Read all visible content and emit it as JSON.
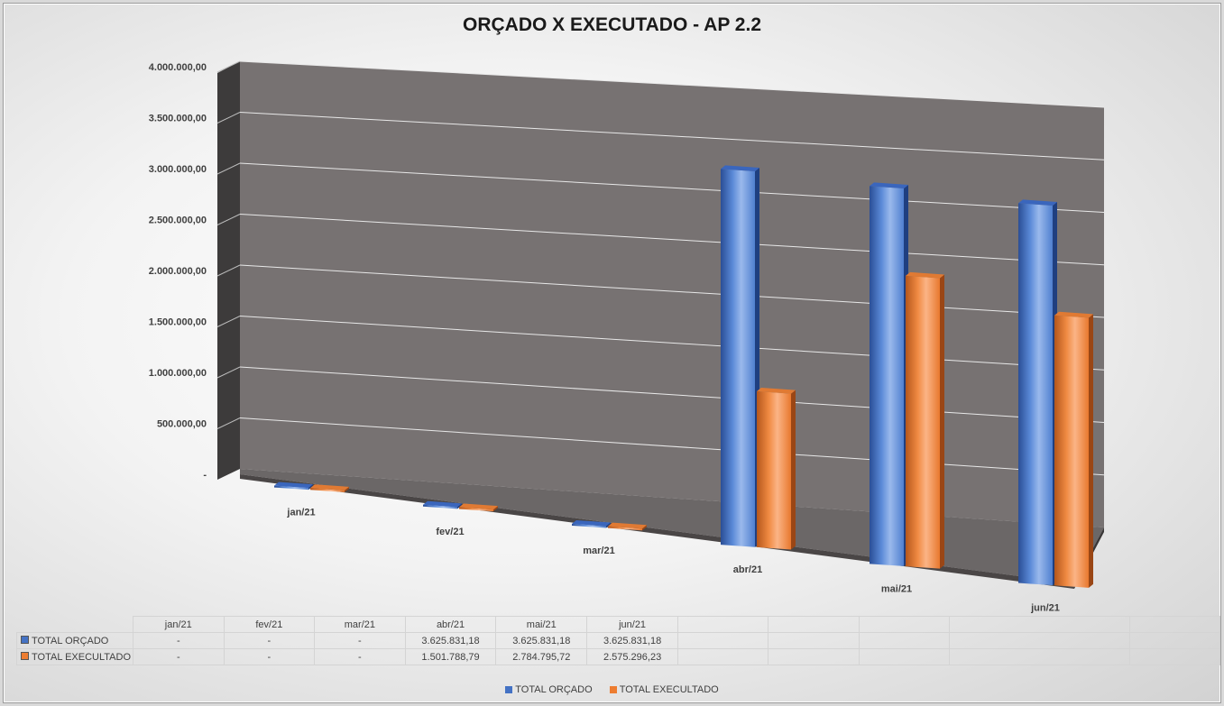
{
  "chart_data": {
    "type": "bar",
    "title": "ORÇADO X EXECUTADO - AP 2.2",
    "categories": [
      "jan/21",
      "fev/21",
      "mar/21",
      "abr/21",
      "mai/21",
      "jun/21"
    ],
    "series": [
      {
        "name": "TOTAL ORÇADO",
        "values": [
          0,
          0,
          0,
          3625831.18,
          3625831.18,
          3625831.18
        ],
        "labels": [
          "-",
          "-",
          "-",
          "3.625.831,18",
          "3.625.831,18",
          "3.625.831,18"
        ],
        "color": "#4472c4"
      },
      {
        "name": "TOTAL EXECULTADO",
        "values": [
          0,
          0,
          0,
          1501788.79,
          2784795.72,
          2575296.23
        ],
        "labels": [
          "-",
          "-",
          "-",
          "1.501.788,79",
          "2.784.795,72",
          "2.575.296,23"
        ],
        "color": "#ed7d31"
      }
    ],
    "ylim": [
      0,
      4000000
    ],
    "yticks": [
      0,
      500000,
      1000000,
      1500000,
      2000000,
      2500000,
      3000000,
      3500000,
      4000000
    ],
    "ytick_labels": [
      "-",
      "500.000,00",
      "1.000.000,00",
      "1.500.000,00",
      "2.000.000,00",
      "2.500.000,00",
      "3.000.000,00",
      "3.500.000,00",
      "4.000.000,00"
    ],
    "grid": true,
    "legend": "bottom",
    "data_table": true,
    "style": "3d-column"
  }
}
